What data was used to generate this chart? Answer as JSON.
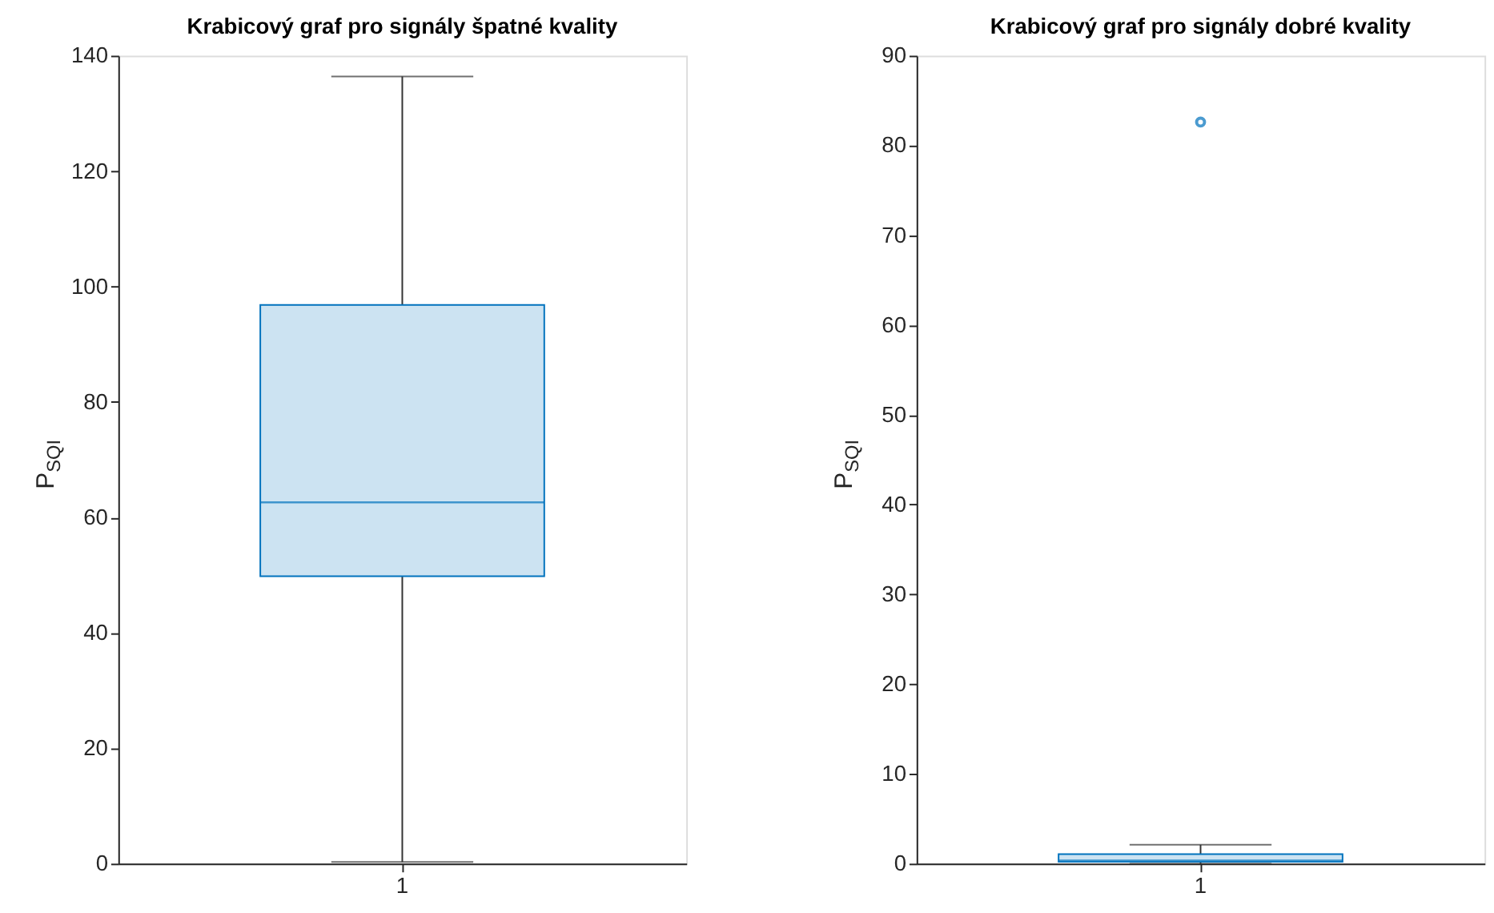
{
  "chart_data": [
    {
      "type": "box",
      "title": "Krabicový graf pro signály špatné kvality",
      "ylabel": "P$_{SQI}$",
      "categories": [
        "1"
      ],
      "ylim": [
        0,
        140
      ],
      "yticks": [
        0,
        20,
        40,
        60,
        80,
        100,
        120,
        140
      ],
      "grid": false,
      "series": [
        {
          "color": "#0072bd",
          "boxes": [
            {
              "low": 0.3,
              "q1": 49.8,
              "median": 62.6,
              "q3": 96.8,
              "high": 136.4
            }
          ]
        }
      ]
    },
    {
      "type": "box",
      "title": "Krabicový graf pro signály dobré kvality",
      "ylabel": "P$_{SQI}$",
      "categories": [
        "1"
      ],
      "ylim": [
        0,
        90
      ],
      "yticks": [
        0,
        10,
        20,
        30,
        40,
        50,
        60,
        70,
        80,
        90
      ],
      "grid": false,
      "series": [
        {
          "color": "#0072bd",
          "boxes": [
            {
              "low": 0,
              "q1": 0.2,
              "median": 0.35,
              "q3": 1.05,
              "high": 2.1,
              "outliers": [
                82.6
              ]
            }
          ]
        }
      ]
    }
  ]
}
